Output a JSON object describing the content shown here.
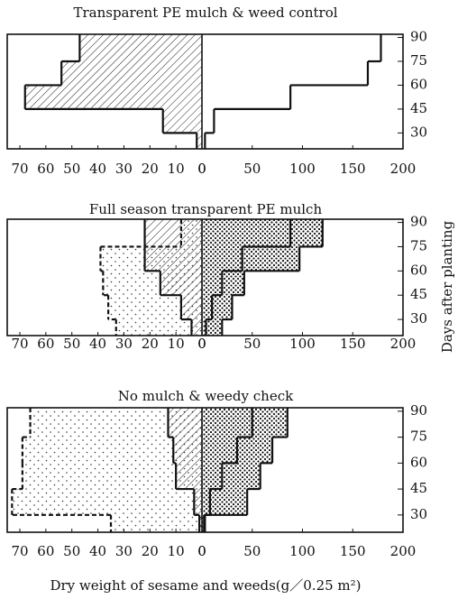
{
  "figure": {
    "xlabel": "Dry weight of sesame and weeds(g／0.25 m²)",
    "ylabel": "Days after planting"
  },
  "chart_data": [
    {
      "type": "back-to-back-step",
      "title": "Transparent PE mulch & weed control",
      "categories": [
        30,
        45,
        60,
        75,
        90
      ],
      "ylim": [
        20,
        92
      ],
      "yticks": [
        30,
        45,
        60,
        75,
        90
      ],
      "left": {
        "xlim": [
          0,
          70
        ],
        "xticks": [
          70,
          60,
          50,
          40,
          30,
          20,
          10,
          0
        ],
        "series": [
          {
            "values": [
              2,
              15,
              68,
              54,
              47
            ],
            "fill": "hatch",
            "line": "solid"
          }
        ]
      },
      "right": {
        "xlim": [
          0,
          200
        ],
        "xticks": [
          0,
          50,
          100,
          150,
          200
        ],
        "series": [
          {
            "values": [
              3,
              12,
              88,
              165,
              178
            ],
            "fill": "none",
            "line": "solid"
          }
        ]
      }
    },
    {
      "type": "back-to-back-step",
      "title": "Full season transparent PE mulch",
      "categories": [
        30,
        45,
        60,
        75,
        90
      ],
      "ylim": [
        20,
        92
      ],
      "yticks": [
        30,
        45,
        60,
        75,
        90
      ],
      "left": {
        "xlim": [
          0,
          70
        ],
        "xticks": [
          70,
          60,
          50,
          40,
          30,
          20,
          10,
          0
        ],
        "series": [
          {
            "values": [
              33,
              36,
              38,
              39,
              8
            ],
            "fill": "dots",
            "line": "dashed"
          },
          {
            "values": [
              4,
              8,
              16,
              22,
              22
            ],
            "fill": "hatch",
            "line": "solid"
          }
        ]
      },
      "right": {
        "xlim": [
          0,
          200
        ],
        "xticks": [
          0,
          50,
          100,
          150,
          200
        ],
        "series": [
          {
            "values": [
              20,
              30,
              42,
              97,
              120
            ],
            "fill": "dense-dots",
            "line": "solid"
          },
          {
            "values": [
              4,
              10,
              20,
              40,
              88
            ],
            "fill": "none",
            "line": "solid"
          }
        ]
      }
    },
    {
      "type": "back-to-back-step",
      "title": "No mulch & weedy check",
      "categories": [
        30,
        45,
        60,
        75,
        90
      ],
      "ylim": [
        20,
        92
      ],
      "yticks": [
        30,
        45,
        60,
        75,
        90
      ],
      "left": {
        "xlim": [
          0,
          70
        ],
        "xticks": [
          70,
          60,
          50,
          40,
          30,
          20,
          10,
          0
        ],
        "series": [
          {
            "values": [
              35,
              73,
              69,
              69,
              66
            ],
            "fill": "dots",
            "line": "dashed"
          },
          {
            "values": [
              1,
              3,
              10,
              11,
              13
            ],
            "fill": "hatch",
            "line": "solid"
          }
        ]
      },
      "right": {
        "xlim": [
          0,
          200
        ],
        "xticks": [
          0,
          50,
          100,
          150,
          200
        ],
        "series": [
          {
            "values": [
              3,
              45,
              58,
              70,
              85
            ],
            "fill": "dense-dots",
            "line": "solid"
          },
          {
            "values": [
              2,
              8,
              20,
              35,
              50
            ],
            "fill": "none",
            "line": "solid"
          }
        ]
      }
    }
  ]
}
